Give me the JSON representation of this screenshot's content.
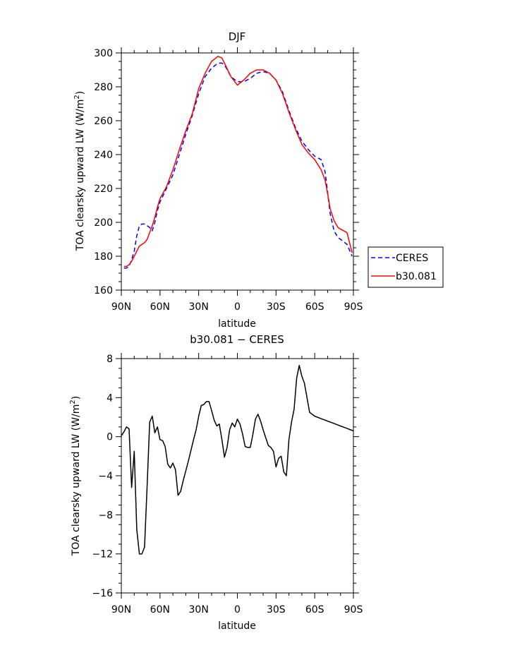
{
  "chart_data": [
    {
      "type": "line",
      "title": "DJF",
      "xlabel": "latitude",
      "ylabel_main": "TOA clearsky upward LW (W/m",
      "ylabel_sup": "2",
      "ylabel_close": ")",
      "xlim": [
        90,
        -90
      ],
      "ylim": [
        160,
        300
      ],
      "x_ticks": [
        90,
        60,
        30,
        0,
        -30,
        -60,
        -90
      ],
      "x_tick_labels": [
        "90N",
        "60N",
        "30N",
        "0",
        "30S",
        "60S",
        "90S"
      ],
      "y_ticks": [
        160,
        180,
        200,
        220,
        240,
        260,
        280,
        300
      ],
      "y_tick_labels": [
        "160",
        "180",
        "200",
        "220",
        "240",
        "260",
        "280",
        "300"
      ],
      "legend_position": "right-bottom",
      "series": [
        {
          "name": "CERES",
          "color": "#0000ff",
          "style": "dashed",
          "x": [
            88,
            86,
            84,
            82,
            80,
            78,
            76,
            74,
            72,
            70,
            68,
            66,
            64,
            62,
            60,
            55,
            50,
            45,
            40,
            35,
            30,
            25,
            20,
            15,
            12,
            10,
            5,
            0,
            -5,
            -10,
            -15,
            -20,
            -25,
            -30,
            -35,
            -40,
            -45,
            -50,
            -55,
            -60,
            -65,
            -68,
            -70,
            -72,
            -75,
            -78,
            -80,
            -85,
            -89
          ],
          "values": [
            173,
            173,
            174,
            178,
            183,
            192,
            198,
            199,
            199,
            198,
            197,
            195,
            200,
            207,
            212,
            220,
            228,
            240,
            252,
            263,
            276,
            286,
            291,
            294,
            294,
            293,
            286,
            283,
            283,
            285,
            288,
            289,
            288,
            284,
            277,
            266,
            256,
            248,
            243,
            239,
            237,
            230,
            218,
            205,
            195,
            191,
            190,
            187,
            180
          ]
        },
        {
          "name": "b30.081",
          "color": "#ff0000",
          "style": "solid",
          "x": [
            88,
            86,
            84,
            82,
            80,
            78,
            76,
            74,
            72,
            70,
            68,
            66,
            64,
            62,
            60,
            55,
            50,
            45,
            40,
            35,
            30,
            25,
            20,
            15,
            12,
            10,
            5,
            0,
            -5,
            -10,
            -15,
            -20,
            -25,
            -30,
            -35,
            -40,
            -45,
            -50,
            -55,
            -60,
            -65,
            -68,
            -70,
            -72,
            -75,
            -78,
            -80,
            -85,
            -89
          ],
          "values": [
            174,
            174,
            175,
            177,
            180,
            183,
            186,
            187,
            188,
            190,
            194,
            198,
            203,
            209,
            214,
            221,
            231,
            243,
            254,
            264,
            279,
            288,
            295,
            298,
            297,
            294,
            286,
            281,
            284,
            288,
            290,
            290,
            288,
            284,
            276,
            265,
            255,
            246,
            241,
            237,
            231,
            225,
            217,
            208,
            201,
            197,
            196,
            194,
            182
          ]
        }
      ]
    },
    {
      "type": "line",
      "title": "b30.081 − CERES",
      "xlabel": "latitude",
      "ylabel_main": "TOA clearsky upward LW (W/m",
      "ylabel_sup": "2",
      "ylabel_close": ")",
      "xlim": [
        90,
        -90
      ],
      "ylim": [
        -16,
        8
      ],
      "x_ticks": [
        90,
        60,
        30,
        0,
        -30,
        -60,
        -90
      ],
      "x_tick_labels": [
        "90N",
        "60N",
        "30N",
        "0",
        "30S",
        "60S",
        "90S"
      ],
      "y_ticks": [
        -16,
        -12,
        -8,
        -4,
        0,
        4,
        8
      ],
      "y_tick_labels": [
        "−16",
        "−12",
        "−8",
        "−4",
        "0",
        "4",
        "8"
      ],
      "series": [
        {
          "color": "#000000",
          "style": "solid",
          "x": [
            90,
            88,
            86,
            84,
            82,
            80,
            78,
            76,
            74,
            72,
            70,
            68,
            66,
            64,
            62,
            60,
            58,
            56,
            54,
            52,
            50,
            48,
            46,
            44,
            42,
            40,
            38,
            36,
            34,
            32,
            30,
            28,
            26,
            24,
            22,
            20,
            18,
            16,
            14,
            12,
            10,
            8,
            6,
            4,
            2,
            0,
            -2,
            -4,
            -6,
            -8,
            -10,
            -12,
            -14,
            -16,
            -18,
            -20,
            -22,
            -24,
            -26,
            -28,
            -30,
            -32,
            -34,
            -36,
            -38,
            -40,
            -42,
            -44,
            -46,
            -48,
            -50,
            -52,
            -54,
            -56,
            -58,
            -60,
            -62,
            -64,
            -66,
            -68,
            -70,
            -72,
            -74,
            -76,
            -78,
            -80,
            -82,
            -84,
            -86,
            -88,
            -90
          ],
          "values": [
            0.1,
            0.5,
            1.0,
            0.8,
            -5.2,
            -1.5,
            -9.5,
            -12.0,
            -12.0,
            -11.3,
            -5.0,
            1.5,
            2.1,
            0.4,
            1.0,
            -0.3,
            -0.4,
            -1.0,
            -2.8,
            -3.2,
            -2.7,
            -3.4,
            -6.0,
            -5.6,
            -4.5,
            -3.5,
            -2.5,
            -1.4,
            -0.3,
            0.7,
            2.1,
            3.2,
            3.3,
            3.6,
            3.6,
            2.7,
            1.7,
            1.1,
            1.3,
            -0.3,
            -2.1,
            -1.1,
            0.7,
            1.4,
            1.0,
            1.8,
            1.3,
            0.3,
            -1.0,
            -1.1,
            -1.1,
            0.2,
            1.8,
            2.3,
            1.6,
            0.7,
            -0.1,
            -0.9,
            -1.1,
            -1.5,
            -3.1,
            -2.2,
            -2.0,
            -3.6,
            -4.0,
            -0.3,
            1.5,
            2.8,
            6.0,
            7.3,
            6.2,
            5.5,
            4.0,
            2.5,
            2.3,
            2.1,
            2.0,
            1.9,
            1.8,
            1.7,
            1.6,
            1.5,
            1.4,
            1.3,
            1.2,
            1.1,
            1.0,
            0.9,
            0.8,
            0.7,
            0.6
          ]
        }
      ]
    }
  ]
}
